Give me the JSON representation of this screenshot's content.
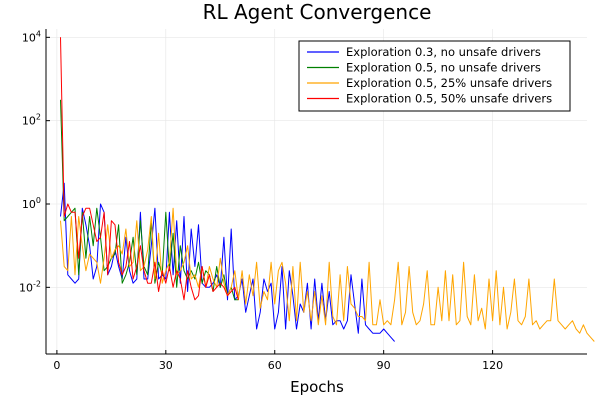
{
  "chart_data": {
    "type": "line",
    "title": "RL Agent Convergence",
    "xlabel": "Epochs",
    "ylabel": "",
    "yscale": "log",
    "xlim": [
      -3,
      146
    ],
    "ylim_exp": [
      -3.6,
      4.2
    ],
    "x_ticks": [
      0,
      30,
      60,
      90,
      120
    ],
    "y_ticks": [
      {
        "exp": 4,
        "base": "10",
        "sup": "4"
      },
      {
        "exp": 2,
        "base": "10",
        "sup": "2"
      },
      {
        "exp": 0,
        "base": "10",
        "sup": "0"
      },
      {
        "exp": -2,
        "base": "10",
        "sup": "-2"
      }
    ],
    "grid": true,
    "legend_position": "top-right",
    "series": [
      {
        "name": "Exploration 0.3, no unsafe drivers",
        "color": "#0000ff",
        "x_start": 1,
        "y_exp": [
          -0.3,
          0.5,
          -1.7,
          -1.8,
          -1.9,
          -1.8,
          -0.1,
          -0.5,
          -1.0,
          -1.8,
          -1.5,
          0.0,
          -0.2,
          -1.7,
          -1.5,
          -1.1,
          -1.5,
          -1.8,
          -0.8,
          -1.6,
          -1.9,
          -1.8,
          -0.2,
          -1.8,
          -1.8,
          -1.0,
          -0.1,
          -1.8,
          -1.7,
          -1.8,
          -0.2,
          -1.7,
          -0.4,
          -1.9,
          -0.3,
          -2.1,
          -0.6,
          -1.5,
          -0.5,
          -1.9,
          -2.0,
          -2.0,
          -1.9,
          -1.7,
          -2.0,
          -0.8,
          -2.3,
          -0.6,
          -2.3,
          -2.2,
          -1.8,
          -2.6,
          -2.2,
          -1.8,
          -3.0,
          -2.6,
          -1.8,
          -2.1,
          -1.9,
          -3.0,
          -2.6,
          -1.5,
          -3.0,
          -1.6,
          -2.2,
          -3.0,
          -2.4,
          -2.6,
          -1.9,
          -3.0,
          -1.8,
          -2.8,
          -1.9,
          -2.8,
          -2.1,
          -2.9,
          -2.8,
          -2.8,
          -3.0,
          -2.8,
          -1.7,
          -2.4,
          -3.1,
          -1.8,
          -2.9,
          -3.0,
          -3.1,
          -3.1,
          -3.1,
          -3.0,
          -3.1,
          -3.2,
          -3.3
        ]
      },
      {
        "name": "Exploration 0.5, no unsafe drivers",
        "color": "#008000",
        "x_start": 1,
        "y_exp": [
          2.5,
          -0.4,
          -0.3,
          -0.2,
          -0.1,
          -1.7,
          -0.2,
          -1.3,
          -0.3,
          -1.0,
          -0.1,
          -0.8,
          -1.6,
          -1.5,
          -1.3,
          -1.2,
          -0.5,
          -1.9,
          -1.7,
          -1.4,
          -0.8,
          -1.7,
          -0.4,
          -1.5,
          -1.7,
          -0.4,
          -1.9,
          -1.4,
          -1.7,
          -0.2,
          -1.6,
          -0.7,
          -2.0,
          -1.0,
          -1.6,
          -1.8,
          -1.6,
          -1.8,
          -1.4,
          -1.9,
          -1.6,
          -1.7,
          -2.1,
          -1.5,
          -2.0,
          -1.7,
          -2.2,
          -2.0,
          -2.3,
          -2.3
        ]
      },
      {
        "name": "Exploration 0.5, 25% unsafe drivers",
        "color": "#ffa500",
        "x_start": 1,
        "y_exp": [
          -0.4,
          -1.5,
          -1.6,
          -0.3,
          -1.7,
          -0.3,
          -1.0,
          -1.6,
          -1.2,
          -1.3,
          -1.4,
          -1.9,
          -1.3,
          -0.5,
          -1.3,
          -1.1,
          -1.0,
          -1.2,
          -0.6,
          -1.5,
          -1.4,
          -0.4,
          -1.6,
          -1.5,
          -1.1,
          -0.3,
          -1.8,
          -0.7,
          -1.9,
          -1.6,
          -1.4,
          -0.1,
          -1.7,
          -1.6,
          -1.4,
          -1.0,
          -1.8,
          -1.7,
          -2.0,
          -1.5,
          -2.0,
          -1.5,
          -1.8,
          -2.0,
          -1.3,
          -1.9,
          -2.2,
          -2.0,
          -1.6,
          -2.3,
          -1.6,
          -2.4,
          -1.7,
          -2.2,
          -1.4,
          -2.5,
          -2.1,
          -2.3,
          -1.4,
          -2.4,
          -1.6,
          -1.4,
          -1.9,
          -2.8,
          -1.5,
          -2.8,
          -1.4,
          -2.6,
          -2.1,
          -2.8,
          -2.1,
          -2.9,
          -2.2,
          -2.9,
          -1.4,
          -2.7,
          -2.9,
          -1.7,
          -2.8,
          -1.5,
          -2.4,
          -2.5,
          -2.7,
          -2.7,
          -2.8,
          -1.4,
          -2.9,
          -2.9,
          -2.3,
          -2.9,
          -2.8,
          -2.9,
          -2.3,
          -1.4,
          -2.9,
          -2.6,
          -1.5,
          -2.6,
          -2.9,
          -2.8,
          -2.4,
          -1.6,
          -2.9,
          -2.9,
          -2.0,
          -2.8,
          -1.6,
          -2.8,
          -1.7,
          -2.9,
          -2.8,
          -1.4,
          -2.7,
          -2.9,
          -1.7,
          -2.8,
          -2.5,
          -3.0,
          -1.8,
          -2.8,
          -1.6,
          -2.9,
          -2.0,
          -3.0,
          -2.6,
          -1.8,
          -2.8,
          -2.9,
          -2.7,
          -1.8,
          -2.9,
          -2.8,
          -3.0,
          -2.9,
          -2.8,
          -2.8,
          -1.8,
          -2.8,
          -2.9,
          -3.0,
          -2.9,
          -2.8,
          -3.0,
          -3.1,
          -2.9,
          -3.1,
          -3.2,
          -3.3
        ]
      },
      {
        "name": "Exploration 0.5, 50% unsafe drivers",
        "color": "#ff0000",
        "x_start": 1,
        "y_exp": [
          4.0,
          -0.3,
          0.0,
          -0.2,
          -0.2,
          -1.3,
          -0.3,
          -0.1,
          -0.1,
          -0.5,
          -0.9,
          -0.8,
          -0.2,
          -1.7,
          -0.4,
          -0.5,
          -1.4,
          -1.7,
          -1.5,
          -0.9,
          -1.8,
          -1.5,
          -1.0,
          -1.6,
          -1.9,
          -1.9,
          -1.4,
          -2.1,
          -1.6,
          -1.9,
          -1.5,
          -2.0,
          -1.6,
          -1.8,
          -2.3,
          -1.6,
          -2.0,
          -2.3,
          -2.2,
          -1.5,
          -2.0,
          -1.7,
          -2.1,
          -2.0,
          -1.9,
          -2.0,
          -2.2,
          -2.1,
          -2.0,
          -2.3
        ]
      }
    ]
  }
}
